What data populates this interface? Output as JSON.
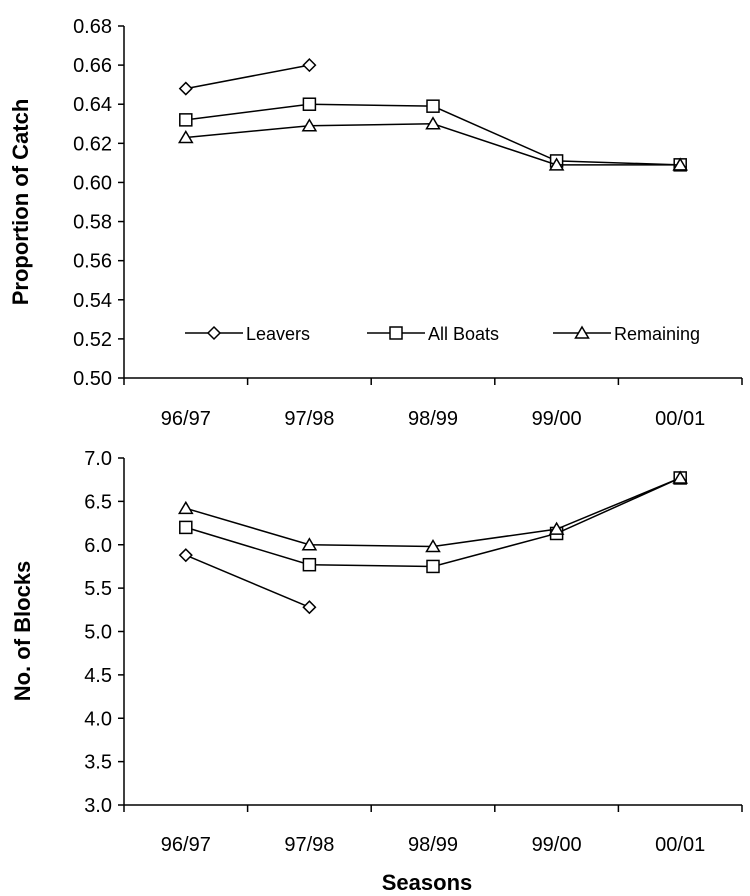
{
  "chart_data": [
    {
      "type": "line",
      "categories": [
        "96/97",
        "97/98",
        "98/99",
        "99/00",
        "00/01"
      ],
      "ylabel": "Proportion of Catch",
      "xlabel": "",
      "ylim": [
        0.5,
        0.68
      ],
      "yticks": [
        "0.50",
        "0.52",
        "0.54",
        "0.56",
        "0.58",
        "0.60",
        "0.62",
        "0.64",
        "0.66",
        "0.68"
      ],
      "legend_position": "bottom",
      "grid": false,
      "series": [
        {
          "name": "Leavers",
          "marker": "diamond",
          "values": [
            0.648,
            0.66,
            null,
            null,
            null
          ]
        },
        {
          "name": "All Boats",
          "marker": "square",
          "values": [
            0.632,
            0.64,
            0.639,
            0.611,
            0.609
          ]
        },
        {
          "name": "Remaining",
          "marker": "triangle",
          "values": [
            0.623,
            0.629,
            0.63,
            0.609,
            0.609
          ]
        }
      ]
    },
    {
      "type": "line",
      "categories": [
        "96/97",
        "97/98",
        "98/99",
        "99/00",
        "00/01"
      ],
      "ylabel": "No. of Blocks",
      "xlabel": "Seasons",
      "ylim": [
        3.0,
        7.0
      ],
      "yticks": [
        "3.0",
        "3.5",
        "4.0",
        "4.5",
        "5.0",
        "5.5",
        "6.0",
        "6.5",
        "7.0"
      ],
      "grid": false,
      "series": [
        {
          "name": "Leavers",
          "marker": "diamond",
          "values": [
            5.88,
            5.28,
            null,
            null,
            null
          ]
        },
        {
          "name": "All Boats",
          "marker": "square",
          "values": [
            6.2,
            5.77,
            5.75,
            6.13,
            6.77
          ]
        },
        {
          "name": "Remaining",
          "marker": "triangle",
          "values": [
            6.42,
            6.0,
            5.98,
            6.18,
            6.77
          ]
        }
      ]
    }
  ]
}
